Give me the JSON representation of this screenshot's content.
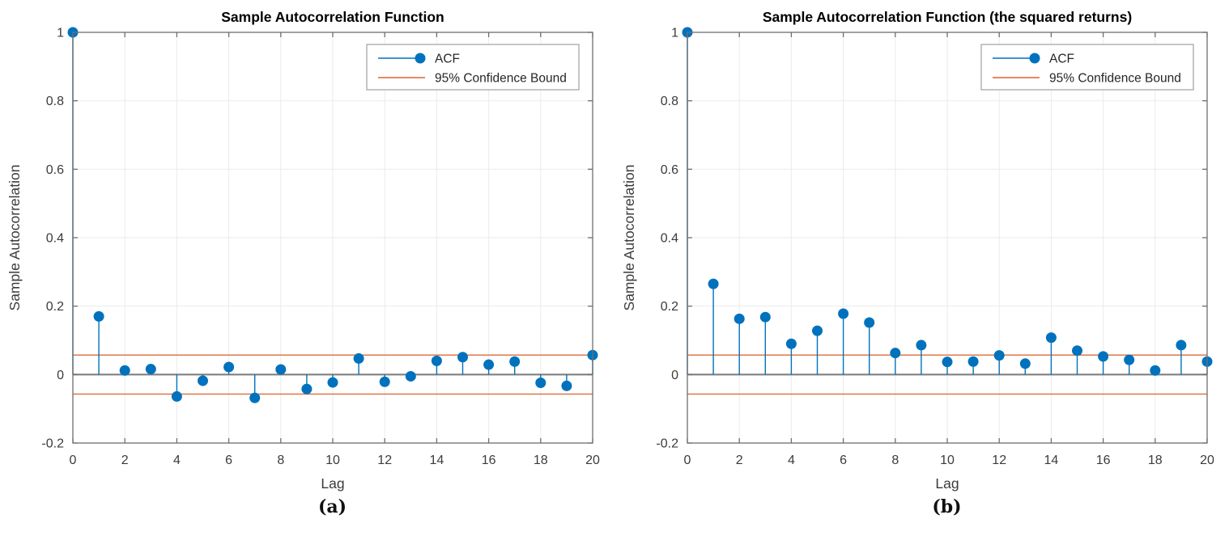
{
  "page": {
    "background": "#ffffff"
  },
  "colors": {
    "acf": "#0072BD",
    "confidence_bound": "#D95319",
    "zero_line": "#808080",
    "grid": "#EBEBEB",
    "axis_box": "#6E6E6E",
    "tick_text": "#3B3B3B",
    "title_text": "#000000",
    "legend_border": "#A0A0A0",
    "legend_bg": "#FFFFFF"
  },
  "chart_data": [
    {
      "type": "stem",
      "title": "Sample Autocorrelation Function",
      "xlabel": "Lag",
      "ylabel": "Sample Autocorrelation",
      "caption": "(a)",
      "legend": [
        "ACF",
        "95% Confidence Bound"
      ],
      "legend_position": "top-right",
      "grid": true,
      "xlim": [
        0,
        20
      ],
      "ylim": [
        -0.2,
        1
      ],
      "xticks": [
        0,
        2,
        4,
        6,
        8,
        10,
        12,
        14,
        16,
        18,
        20
      ],
      "xtick_labels": [
        "0",
        "2",
        "4",
        "6",
        "8",
        "10",
        "12",
        "14",
        "16",
        "18",
        "20"
      ],
      "yticks": [
        -0.2,
        0,
        0.2,
        0.4,
        0.6,
        0.8,
        1
      ],
      "ytick_labels": [
        "-0.2",
        "0",
        "0.2",
        "0.4",
        "0.6",
        "0.8",
        "1"
      ],
      "confidence_bound": 0.057,
      "lags": [
        0,
        1,
        2,
        3,
        4,
        5,
        6,
        7,
        8,
        9,
        10,
        11,
        12,
        13,
        14,
        15,
        16,
        17,
        18,
        19,
        20
      ],
      "acf": [
        1,
        0.17,
        0.012,
        0.016,
        -0.064,
        -0.018,
        0.022,
        -0.068,
        0.015,
        -0.042,
        -0.023,
        0.047,
        -0.021,
        -0.005,
        0.04,
        0.051,
        0.029,
        0.038,
        -0.024,
        -0.033,
        0.057
      ]
    },
    {
      "type": "stem",
      "title": "Sample Autocorrelation Function (the squared returns)",
      "xlabel": "Lag",
      "ylabel": "Sample Autocorrelation",
      "caption": "(b)",
      "legend": [
        "ACF",
        "95% Confidence Bound"
      ],
      "legend_position": "top-right",
      "grid": true,
      "xlim": [
        0,
        20
      ],
      "ylim": [
        -0.2,
        1
      ],
      "xticks": [
        0,
        2,
        4,
        6,
        8,
        10,
        12,
        14,
        16,
        18,
        20
      ],
      "xtick_labels": [
        "0",
        "2",
        "4",
        "6",
        "8",
        "10",
        "12",
        "14",
        "16",
        "18",
        "20"
      ],
      "yticks": [
        -0.2,
        0,
        0.2,
        0.4,
        0.6,
        0.8,
        1
      ],
      "ytick_labels": [
        "-0.2",
        "0",
        "0.2",
        "0.4",
        "0.6",
        "0.8",
        "1"
      ],
      "confidence_bound": 0.057,
      "lags": [
        0,
        1,
        2,
        3,
        4,
        5,
        6,
        7,
        8,
        9,
        10,
        11,
        12,
        13,
        14,
        15,
        16,
        17,
        18,
        19,
        20
      ],
      "acf": [
        1,
        0.265,
        0.163,
        0.168,
        0.09,
        0.128,
        0.178,
        0.152,
        0.063,
        0.086,
        0.037,
        0.038,
        0.056,
        0.032,
        0.108,
        0.07,
        0.053,
        0.043,
        0.012,
        0.086,
        0.038
      ]
    }
  ]
}
